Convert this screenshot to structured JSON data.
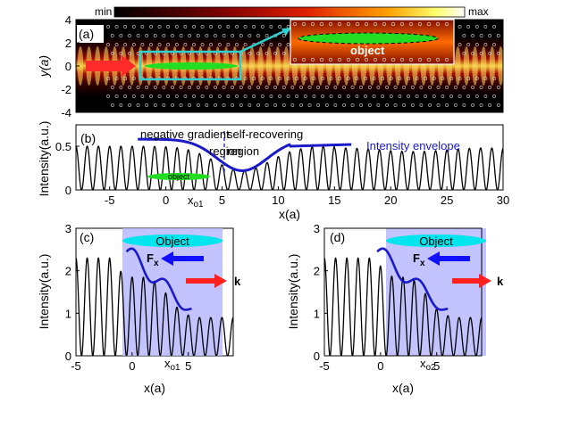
{
  "colorbar": {
    "min_label": "min",
    "max_label": "max"
  },
  "panel_a": {
    "label": "(a)",
    "ylabel": "y(a)",
    "yticks": [
      "4",
      "2",
      "0",
      "-2",
      "-4"
    ],
    "inset_label": "object"
  },
  "panel_b": {
    "label": "(b)",
    "ylabel": "Intensity(a.u.)",
    "xlabel": "x(a)",
    "xticks": [
      "-5",
      "0",
      "5",
      "10",
      "15",
      "20",
      "25",
      "30"
    ],
    "yticks": [
      "0",
      "0.5"
    ],
    "annot_negative_gradient": "negative gradient",
    "annot_self_recovering": "self-recovering",
    "annot_region_left": "region",
    "annot_region_right": "region",
    "legend_envelope": "Intensity envelope",
    "object_label": "object",
    "x_marker": "x",
    "x_marker_sub": "o1"
  },
  "panel_c": {
    "label": "(c)",
    "ylabel": "Intensity(a.u.)",
    "xlabel": "x(a)",
    "xticks": [
      "-5",
      "0",
      "5"
    ],
    "yticks": [
      "0",
      "1",
      "2",
      "3"
    ],
    "object_label": "Object",
    "force_label": "F",
    "force_sub": "x",
    "k_label": "k",
    "x_marker": "x",
    "x_marker_sub": "o1"
  },
  "panel_d": {
    "label": "(d)",
    "ylabel": "Intensity(a.u.)",
    "xlabel": "x(a)",
    "xticks": [
      "-5",
      "0",
      "5"
    ],
    "yticks": [
      "0",
      "1",
      "2",
      "3"
    ],
    "object_label": "Object",
    "force_label": "F",
    "force_sub": "x",
    "k_label": "k",
    "x_marker": "x",
    "x_marker_sub": "o2"
  },
  "colors": {
    "envelope": "#1a1ac8",
    "object_green": "#22dd22",
    "object_cyan": "#00e5ee",
    "shade": "#b8b8ff",
    "arrow_red": "#ff2020",
    "arrow_blue": "#1010ff",
    "inset_border": "#30d0d0",
    "marker_divider": "#1a1ac8"
  }
}
